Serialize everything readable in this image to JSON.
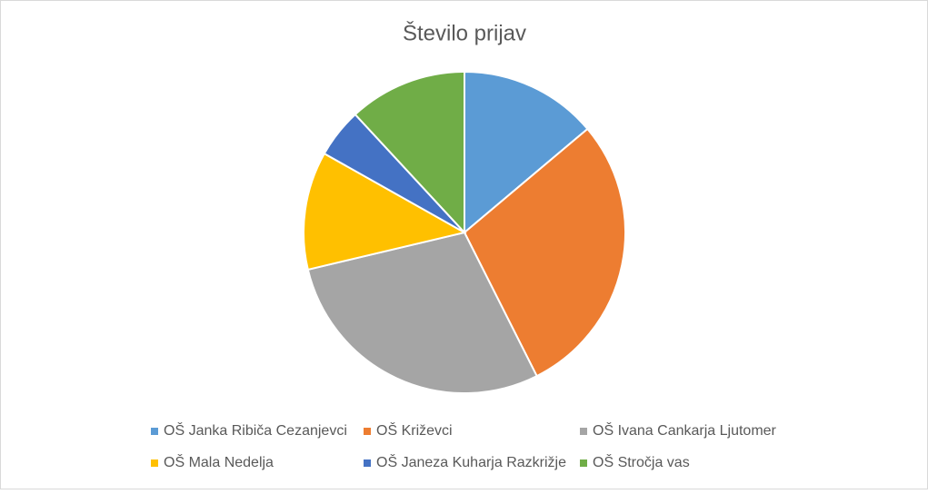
{
  "chart_data": {
    "type": "pie",
    "title": "Število prijav",
    "categories": [
      "OŠ Janka Ribiča Cezanjevci",
      "OŠ Križevci",
      "OŠ Ivana Cankarja Ljutomer",
      "OŠ Mala Nedelja",
      "OŠ Janeza Kuharja Razkrižje",
      "OŠ Stročja vas"
    ],
    "values": [
      14,
      29,
      29,
      12,
      5,
      12
    ],
    "colors": [
      "#5b9bd5",
      "#ed7d31",
      "#a5a5a5",
      "#ffc000",
      "#4472c4",
      "#70ad47"
    ],
    "legend": "bottom"
  }
}
